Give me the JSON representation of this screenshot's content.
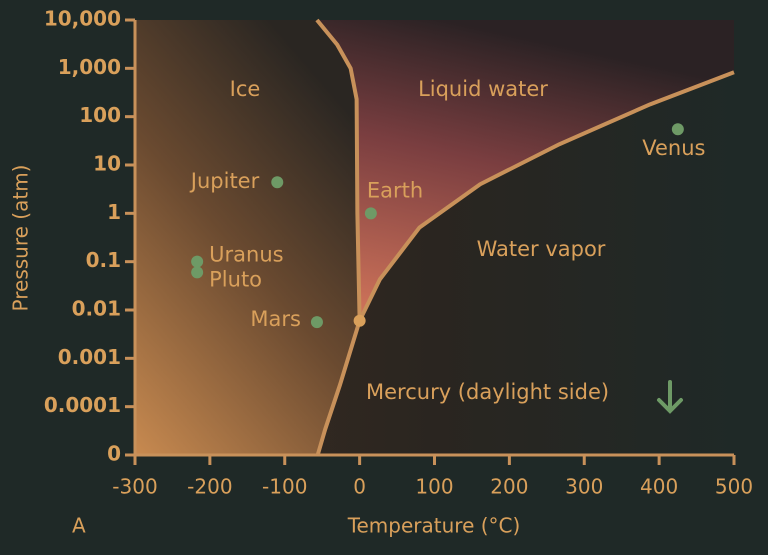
{
  "chart_data": {
    "type": "scatter",
    "panel_label": "A",
    "x_axis_label": "Temperature (°C)",
    "y_axis_label": "Pressure (atm)",
    "xlim": [
      -300,
      500
    ],
    "xticks": [
      -300,
      -200,
      -100,
      0,
      100,
      200,
      300,
      400,
      500
    ],
    "ylim": [
      1e-05,
      10000
    ],
    "log_y": true,
    "yticks": [
      0,
      0.0001,
      0.001,
      0.01,
      0.1,
      1,
      10,
      100,
      {
        "value": 1000,
        "label": "1,000"
      },
      {
        "value": 10000,
        "label": "10,000"
      }
    ],
    "regions": [
      "Ice",
      "Liquid water",
      "Water vapor"
    ],
    "annotation": "Mercury (daylight side)",
    "points": {
      "color": "#6e9a66",
      "labels": [
        "Jupiter",
        "Uranus",
        "Pluto",
        "Mars",
        "Earth",
        "Venus"
      ],
      "x": [
        -110,
        -217,
        -217,
        -57,
        15,
        425
      ],
      "y": [
        4.4,
        0.1,
        0.06,
        0.0056,
        1,
        55
      ]
    },
    "triple_point": {
      "x": 0,
      "y": 0.006,
      "color": "#d9a05b"
    },
    "boundary_color": "#c8915a",
    "boundaries": [
      {
        "x": [
          0,
          -3,
          -4,
          -12,
          -30,
          -57
        ],
        "y": [
          0.006,
          1,
          230,
          1000,
          3100,
          10000
        ]
      },
      {
        "x": [
          0,
          27,
          80,
          161,
          267,
          388,
          500
        ],
        "y": [
          0.006,
          0.043,
          0.51,
          4,
          27,
          180,
          830
        ]
      },
      {
        "x": [
          0,
          -26,
          -46,
          -56
        ],
        "y": [
          0.006,
          0.00029,
          3.4e-05,
          1e-05
        ]
      }
    ]
  }
}
